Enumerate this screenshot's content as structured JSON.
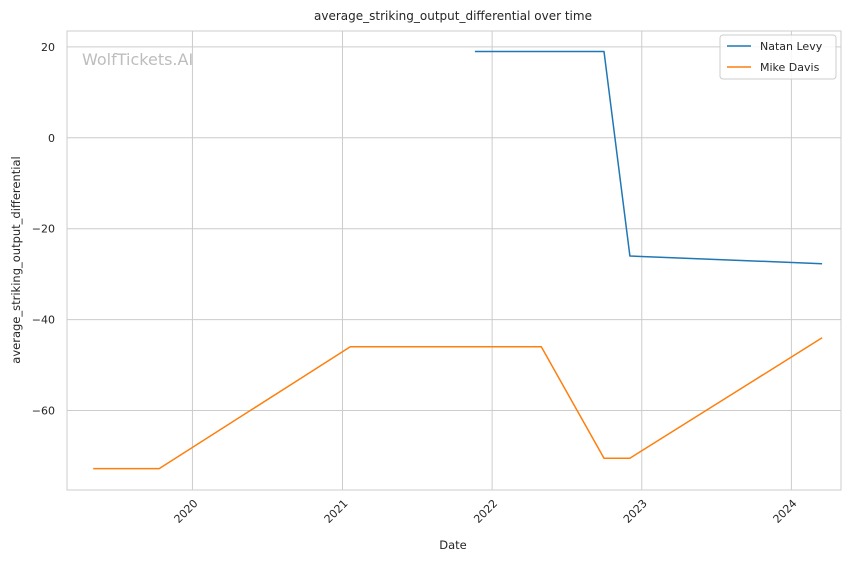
{
  "chart_data": {
    "type": "line",
    "title": "average_striking_output_differential over time",
    "xlabel": "Date",
    "ylabel": "average_striking_output_differential",
    "watermark": "WolfTickets.AI",
    "x_ticks": [
      "2020",
      "2021",
      "2022",
      "2023",
      "2024"
    ],
    "y_ticks": [
      20,
      0,
      -20,
      -40,
      -60
    ],
    "xlim": [
      "2019-03-01",
      "2024-05-01"
    ],
    "ylim": [
      -77.5,
      23.5
    ],
    "grid": true,
    "legend_position": "top-right",
    "series": [
      {
        "name": "Natan Levy",
        "color": "#1f77b4",
        "points": [
          {
            "x": "2021-11-20",
            "y": 19
          },
          {
            "x": "2022-10-01",
            "y": 19
          },
          {
            "x": "2022-12-03",
            "y": -26
          },
          {
            "x": "2024-03-16",
            "y": -27.7
          }
        ]
      },
      {
        "name": "Mike Davis",
        "color": "#ff7f0e",
        "points": [
          {
            "x": "2019-05-04",
            "y": -72.8
          },
          {
            "x": "2019-10-12",
            "y": -72.8
          },
          {
            "x": "2021-01-20",
            "y": -46
          },
          {
            "x": "2022-05-01",
            "y": -46
          },
          {
            "x": "2022-10-01",
            "y": -70.5
          },
          {
            "x": "2022-12-03",
            "y": -70.5
          },
          {
            "x": "2024-03-16",
            "y": -44
          }
        ]
      }
    ]
  }
}
